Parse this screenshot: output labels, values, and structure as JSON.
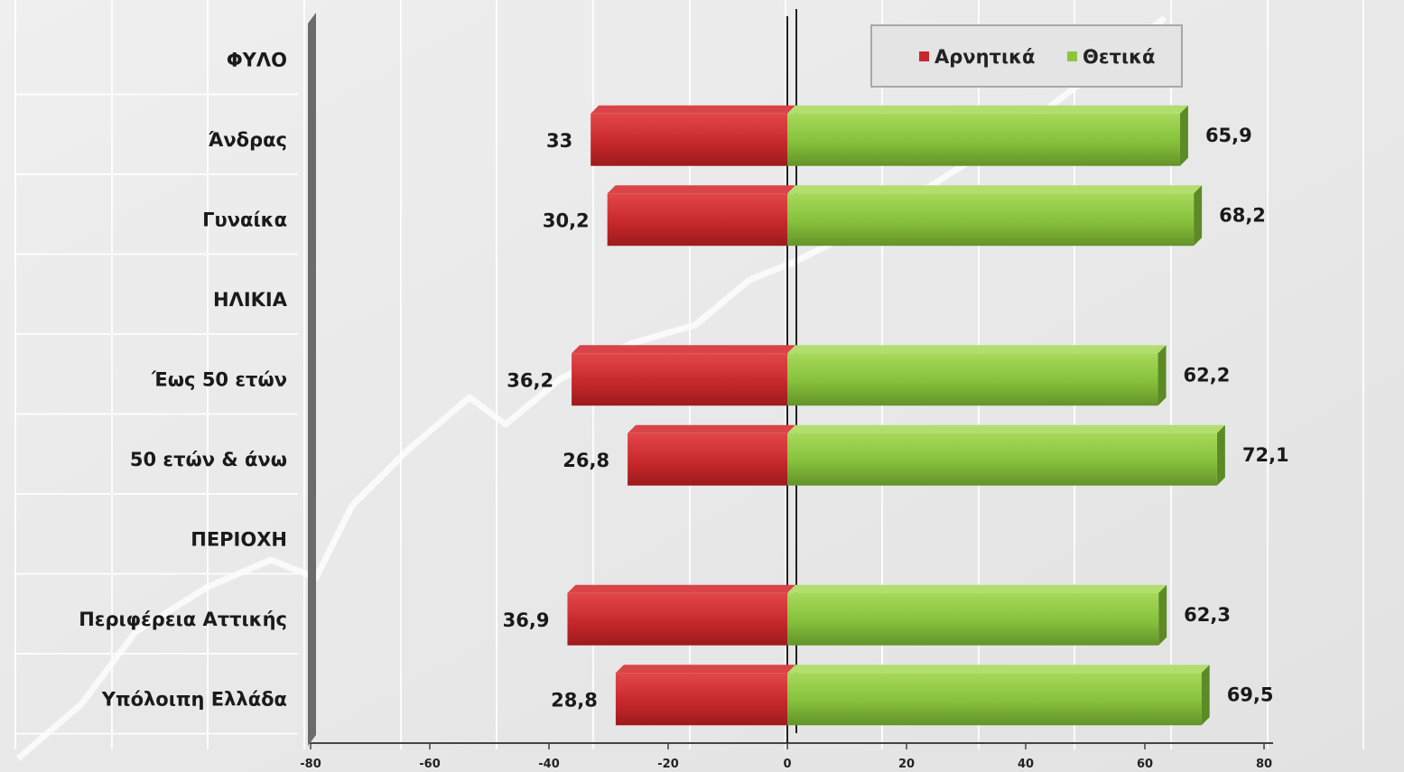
{
  "chart_data": {
    "type": "bar",
    "orientation": "horizontal",
    "layout": "diverging",
    "rows": [
      {
        "label": "ΦΥΛΟ",
        "group_header": true
      },
      {
        "label": "Άνδρας",
        "negative": 33,
        "positive": 65.9,
        "negative_text": "33",
        "positive_text": "65,9"
      },
      {
        "label": "Γυναίκα",
        "negative": 30.2,
        "positive": 68.2,
        "negative_text": "30,2",
        "positive_text": "68,2"
      },
      {
        "label": "ΗΛΙΚΙΑ",
        "group_header": true
      },
      {
        "label": "Έως 50 ετών",
        "negative": 36.2,
        "positive": 62.2,
        "negative_text": "36,2",
        "positive_text": "62,2"
      },
      {
        "label": "50 ετών & άνω",
        "negative": 26.8,
        "positive": 72.1,
        "negative_text": "26,8",
        "positive_text": "72,1"
      },
      {
        "label": "ΠΕΡΙΟΧΗ",
        "group_header": true
      },
      {
        "label": "Περιφέρεια Αττικής",
        "negative": 36.9,
        "positive": 62.3,
        "negative_text": "36,9",
        "positive_text": "62,3"
      },
      {
        "label": "Υπόλοιπη Ελλάδα",
        "negative": 28.8,
        "positive": 69.5,
        "negative_text": "28,8",
        "positive_text": "69,5"
      }
    ],
    "series": [
      {
        "name": "Αρνητικά",
        "color": "#c8282b",
        "direction": "left"
      },
      {
        "name": "Θετικά",
        "color": "#8cc63f",
        "direction": "right"
      }
    ],
    "xlim": [
      -80,
      80
    ],
    "x_ticks": [
      -80,
      -60,
      -40,
      -20,
      0,
      20,
      40,
      60,
      80
    ],
    "x_tick_labels": [
      "-80",
      "-60",
      "-40",
      "-20",
      "0",
      "20",
      "40",
      "60",
      "80"
    ],
    "grid": true,
    "legend_position": "top-right"
  }
}
